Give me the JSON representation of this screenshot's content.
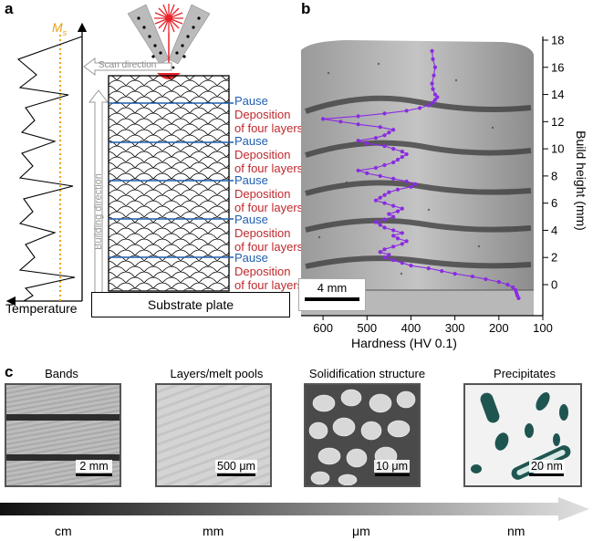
{
  "panel_a": {
    "letter": "a",
    "ms_label": "M",
    "ms_sub": "s",
    "temperature_label": "Temperature",
    "scan_direction": "Scan direction",
    "building_direction": "Building direction",
    "substrate": "Substrate plate",
    "pause": "Pause",
    "deposition_line1": "Deposition",
    "deposition_line2": "of four layers",
    "colors": {
      "pause": "#1f5fb0",
      "deposition": "#c0282d",
      "ms_line": "#e8a317",
      "laser": "#e8232a"
    }
  },
  "panel_b": {
    "letter": "b",
    "scale_bar": "4 mm",
    "xlabel": "Hardness (HV 0.1)",
    "ylabel": "Build height (mm)",
    "x_ticks": [
      "600",
      "500",
      "400",
      "300",
      "200",
      "100"
    ],
    "y_ticks": [
      "0",
      "2",
      "4",
      "6",
      "8",
      "10",
      "12",
      "14",
      "16",
      "18"
    ]
  },
  "chart_data": {
    "type": "line",
    "xlabel": "Hardness (HV 0.1)",
    "ylabel": "Build height (mm)",
    "xlim": [
      650,
      100
    ],
    "ylim": [
      -1,
      18
    ],
    "series": [
      {
        "color": "#8a2be2",
        "hardness": [
          155,
          158,
          160,
          162,
          168,
          180,
          200,
          230,
          260,
          300,
          330,
          360,
          400,
          420,
          440,
          460,
          450,
          470,
          460,
          440,
          420,
          410,
          430,
          440,
          420,
          440,
          460,
          470,
          480,
          460,
          440,
          450,
          430,
          420,
          440,
          460,
          480,
          470,
          460,
          450,
          430,
          400,
          390,
          410,
          440,
          470,
          500,
          520,
          480,
          460,
          440,
          430,
          420,
          410,
          420,
          440,
          460,
          500,
          520,
          480,
          460,
          450,
          440,
          470,
          520,
          560,
          600,
          520,
          460,
          410,
          380,
          360,
          350,
          345,
          340,
          345,
          350,
          352,
          348,
          345,
          350,
          352
        ],
        "height": [
          -1.0,
          -0.8,
          -0.6,
          -0.4,
          -0.2,
          0.0,
          0.2,
          0.4,
          0.6,
          0.8,
          1.0,
          1.2,
          1.4,
          1.6,
          1.8,
          2.0,
          2.2,
          2.4,
          2.6,
          2.8,
          3.0,
          3.2,
          3.4,
          3.6,
          3.8,
          4.0,
          4.2,
          4.4,
          4.6,
          4.8,
          5.0,
          5.2,
          5.4,
          5.6,
          5.8,
          6.0,
          6.2,
          6.4,
          6.6,
          6.8,
          7.0,
          7.2,
          7.4,
          7.6,
          7.8,
          8.0,
          8.2,
          8.4,
          8.6,
          8.8,
          9.0,
          9.2,
          9.4,
          9.6,
          9.8,
          10.0,
          10.2,
          10.4,
          10.6,
          10.8,
          11.0,
          11.2,
          11.4,
          11.6,
          11.8,
          12.0,
          12.2,
          12.4,
          12.6,
          12.8,
          13.0,
          13.2,
          13.4,
          13.6,
          13.8,
          14.0,
          14.4,
          14.8,
          15.4,
          16.0,
          16.6,
          17.2
        ]
      }
    ]
  },
  "panel_c": {
    "letter": "c",
    "items": [
      {
        "title": "Bands",
        "scale": "2 mm"
      },
      {
        "title": "Layers/melt pools",
        "scale": "500 μm"
      },
      {
        "title": "Solidification structure",
        "scale": "10 μm"
      },
      {
        "title": "Precipitates",
        "scale": "20 nm"
      }
    ],
    "scale_axis": [
      "cm",
      "mm",
      "μm",
      "nm"
    ],
    "colors": {
      "precipitate": "#1f5550"
    }
  }
}
